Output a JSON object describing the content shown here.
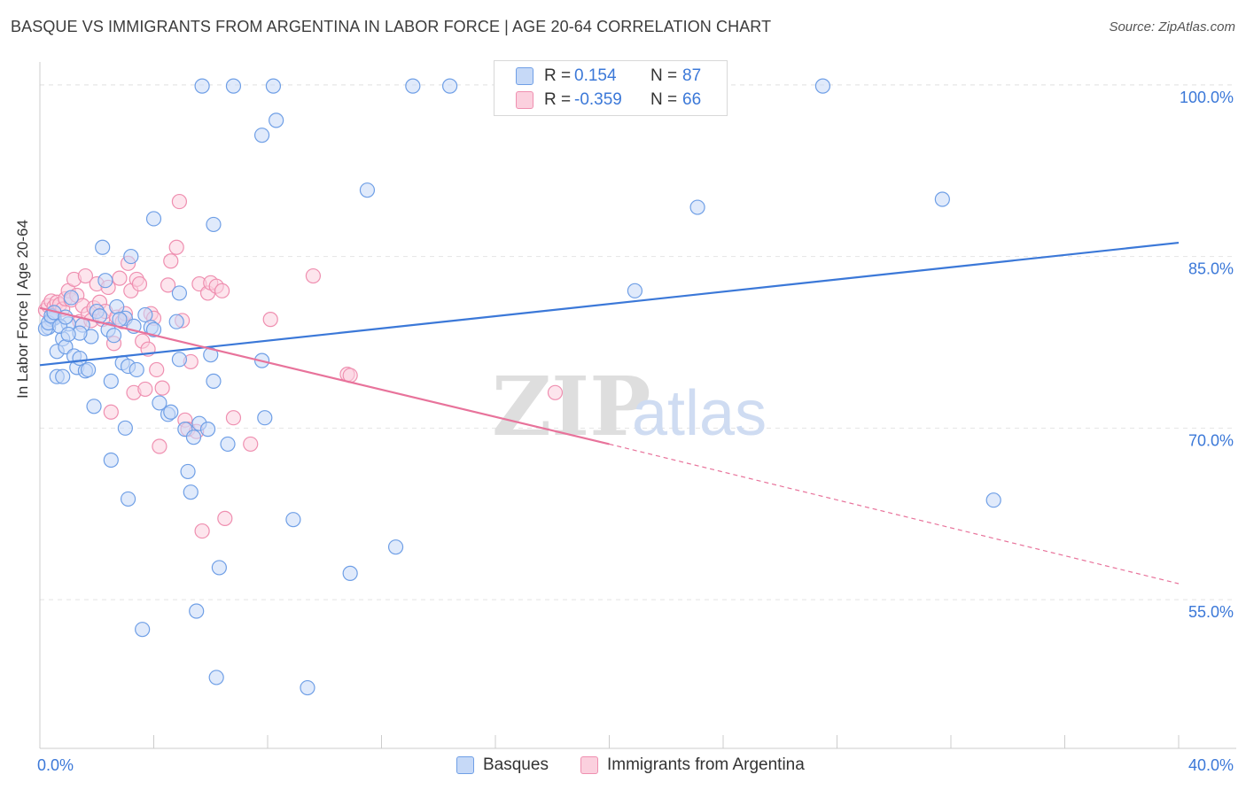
{
  "title": "BASQUE VS IMMIGRANTS FROM ARGENTINA IN LABOR FORCE | AGE 20-64 CORRELATION CHART",
  "source": "Source: ZipAtlas.com",
  "watermark": {
    "zip": "ZIP",
    "atlas": "atlas"
  },
  "legend": {
    "rows": [
      {
        "r_label": "R =",
        "r_value": "0.154",
        "n_label": "N =",
        "n_value": "87",
        "fill": "#c6d9f7",
        "stroke": "#6f9fe6"
      },
      {
        "r_label": "R =",
        "r_value": "-0.359",
        "n_label": "N =",
        "n_value": "66",
        "fill": "#fbd0de",
        "stroke": "#ef8fb0"
      }
    ]
  },
  "bottom_legend": [
    {
      "label": "Basques",
      "fill": "#c6d9f7",
      "stroke": "#6f9fe6"
    },
    {
      "label": "Immigrants from Argentina",
      "fill": "#fbd0de",
      "stroke": "#ef8fb0"
    }
  ],
  "chart_data": {
    "type": "scatter",
    "title": "BASQUE VS IMMIGRANTS FROM ARGENTINA IN LABOR FORCE | AGE 20-64 CORRELATION CHART",
    "xlabel": "",
    "ylabel": "In Labor Force | Age 20-64",
    "xlim": [
      0,
      40
    ],
    "ylim": [
      42,
      102
    ],
    "x_tick_labels": [
      "0.0%",
      "40.0%"
    ],
    "y_tick_labels": [
      "55.0%",
      "70.0%",
      "85.0%",
      "100.0%"
    ],
    "y_ticks": [
      55,
      70,
      85,
      100
    ],
    "grid": true,
    "legend_position": "top-center",
    "series": [
      {
        "name": "Basques",
        "color": "#3b78d8",
        "fill": "#c6d9f7",
        "trend": {
          "x": [
            0,
            40
          ],
          "y": [
            75.5,
            86.2
          ]
        },
        "points": [
          [
            0.3,
            78.8
          ],
          [
            0.4,
            79.5
          ],
          [
            0.5,
            79.6
          ],
          [
            0.6,
            76.7
          ],
          [
            0.6,
            74.5
          ],
          [
            0.8,
            74.5
          ],
          [
            0.8,
            77.8
          ],
          [
            0.9,
            77.1
          ],
          [
            1.0,
            79.1
          ],
          [
            1.1,
            81.4
          ],
          [
            1.2,
            76.3
          ],
          [
            1.3,
            75.3
          ],
          [
            1.4,
            76.1
          ],
          [
            1.5,
            79.0
          ],
          [
            1.6,
            75.0
          ],
          [
            1.7,
            75.1
          ],
          [
            1.8,
            78.0
          ],
          [
            1.9,
            71.9
          ],
          [
            2.0,
            80.2
          ],
          [
            2.1,
            79.8
          ],
          [
            2.2,
            85.8
          ],
          [
            2.3,
            82.9
          ],
          [
            2.4,
            78.6
          ],
          [
            2.5,
            67.2
          ],
          [
            2.5,
            74.1
          ],
          [
            2.6,
            78.1
          ],
          [
            2.7,
            80.6
          ],
          [
            2.9,
            75.7
          ],
          [
            3.0,
            70.0
          ],
          [
            3.0,
            79.6
          ],
          [
            3.1,
            75.4
          ],
          [
            3.1,
            63.8
          ],
          [
            3.2,
            85.0
          ],
          [
            3.3,
            78.9
          ],
          [
            3.4,
            75.1
          ],
          [
            3.6,
            52.4
          ],
          [
            3.7,
            79.9
          ],
          [
            3.9,
            78.8
          ],
          [
            4.0,
            78.6
          ],
          [
            4.0,
            88.3
          ],
          [
            4.2,
            72.2
          ],
          [
            4.5,
            71.2
          ],
          [
            4.6,
            71.4
          ],
          [
            4.8,
            79.3
          ],
          [
            4.9,
            76.0
          ],
          [
            4.9,
            81.8
          ],
          [
            5.1,
            69.9
          ],
          [
            5.2,
            66.2
          ],
          [
            5.3,
            64.4
          ],
          [
            5.4,
            69.2
          ],
          [
            5.5,
            54.0
          ],
          [
            5.6,
            70.4
          ],
          [
            5.7,
            99.9
          ],
          [
            5.9,
            69.9
          ],
          [
            6.0,
            76.4
          ],
          [
            6.1,
            74.1
          ],
          [
            6.1,
            87.8
          ],
          [
            6.2,
            48.2
          ],
          [
            6.3,
            57.8
          ],
          [
            6.6,
            68.6
          ],
          [
            6.8,
            99.9
          ],
          [
            7.8,
            75.9
          ],
          [
            7.8,
            95.6
          ],
          [
            7.9,
            70.9
          ],
          [
            8.2,
            99.9
          ],
          [
            8.3,
            96.9
          ],
          [
            8.9,
            62.0
          ],
          [
            9.4,
            47.3
          ],
          [
            10.9,
            57.3
          ],
          [
            11.5,
            90.8
          ],
          [
            12.5,
            59.6
          ],
          [
            13.1,
            99.9
          ],
          [
            14.4,
            99.9
          ],
          [
            20.9,
            82.0
          ],
          [
            23.1,
            89.3
          ],
          [
            27.5,
            99.9
          ],
          [
            31.7,
            90.0
          ],
          [
            33.5,
            63.7
          ],
          [
            0.2,
            78.7
          ],
          [
            0.3,
            79.2
          ],
          [
            0.4,
            79.8
          ],
          [
            0.7,
            78.9
          ],
          [
            1.4,
            78.3
          ],
          [
            1.0,
            78.2
          ],
          [
            2.8,
            79.5
          ],
          [
            0.5,
            80.1
          ],
          [
            0.9,
            79.7
          ]
        ]
      },
      {
        "name": "Immigrants from Argentina",
        "color": "#e8739b",
        "fill": "#fbd0de",
        "trend": {
          "x": [
            0,
            20
          ],
          "y": [
            80.5,
            68.6
          ]
        },
        "trend_dashed": {
          "x": [
            20,
            40
          ],
          "y": [
            68.6,
            56.4
          ]
        },
        "points": [
          [
            0.2,
            80.3
          ],
          [
            0.3,
            80.7
          ],
          [
            0.4,
            81.1
          ],
          [
            0.5,
            80.0
          ],
          [
            0.5,
            80.6
          ],
          [
            0.6,
            81.0
          ],
          [
            0.7,
            80.8
          ],
          [
            0.8,
            80.4
          ],
          [
            0.9,
            81.3
          ],
          [
            1.0,
            82.0
          ],
          [
            1.1,
            81.2
          ],
          [
            1.2,
            83.0
          ],
          [
            1.3,
            81.6
          ],
          [
            1.4,
            79.3
          ],
          [
            1.5,
            80.7
          ],
          [
            1.6,
            83.3
          ],
          [
            1.7,
            80.0
          ],
          [
            1.8,
            79.4
          ],
          [
            1.9,
            80.5
          ],
          [
            2.0,
            82.6
          ],
          [
            2.1,
            81.0
          ],
          [
            2.2,
            79.5
          ],
          [
            2.3,
            80.2
          ],
          [
            2.4,
            82.3
          ],
          [
            2.5,
            71.4
          ],
          [
            2.6,
            77.4
          ],
          [
            2.7,
            79.7
          ],
          [
            2.8,
            83.1
          ],
          [
            2.9,
            79.3
          ],
          [
            3.0,
            80.0
          ],
          [
            3.1,
            84.4
          ],
          [
            3.2,
            82.0
          ],
          [
            3.3,
            73.1
          ],
          [
            3.4,
            83.0
          ],
          [
            3.5,
            82.6
          ],
          [
            3.6,
            77.6
          ],
          [
            3.7,
            73.4
          ],
          [
            3.8,
            76.9
          ],
          [
            3.9,
            80.0
          ],
          [
            4.0,
            79.6
          ],
          [
            4.1,
            75.1
          ],
          [
            4.2,
            68.4
          ],
          [
            4.3,
            73.5
          ],
          [
            4.5,
            82.5
          ],
          [
            4.6,
            84.6
          ],
          [
            4.8,
            85.8
          ],
          [
            4.9,
            89.8
          ],
          [
            5.0,
            79.4
          ],
          [
            5.1,
            70.7
          ],
          [
            5.2,
            69.9
          ],
          [
            5.3,
            75.8
          ],
          [
            5.5,
            69.7
          ],
          [
            5.6,
            82.6
          ],
          [
            5.7,
            61.0
          ],
          [
            5.9,
            81.8
          ],
          [
            6.0,
            82.7
          ],
          [
            6.2,
            82.4
          ],
          [
            6.4,
            82.0
          ],
          [
            6.5,
            62.1
          ],
          [
            6.8,
            70.9
          ],
          [
            7.4,
            68.6
          ],
          [
            8.1,
            79.5
          ],
          [
            9.6,
            83.3
          ],
          [
            10.8,
            74.7
          ],
          [
            10.9,
            74.6
          ],
          [
            18.1,
            73.1
          ]
        ]
      }
    ]
  }
}
